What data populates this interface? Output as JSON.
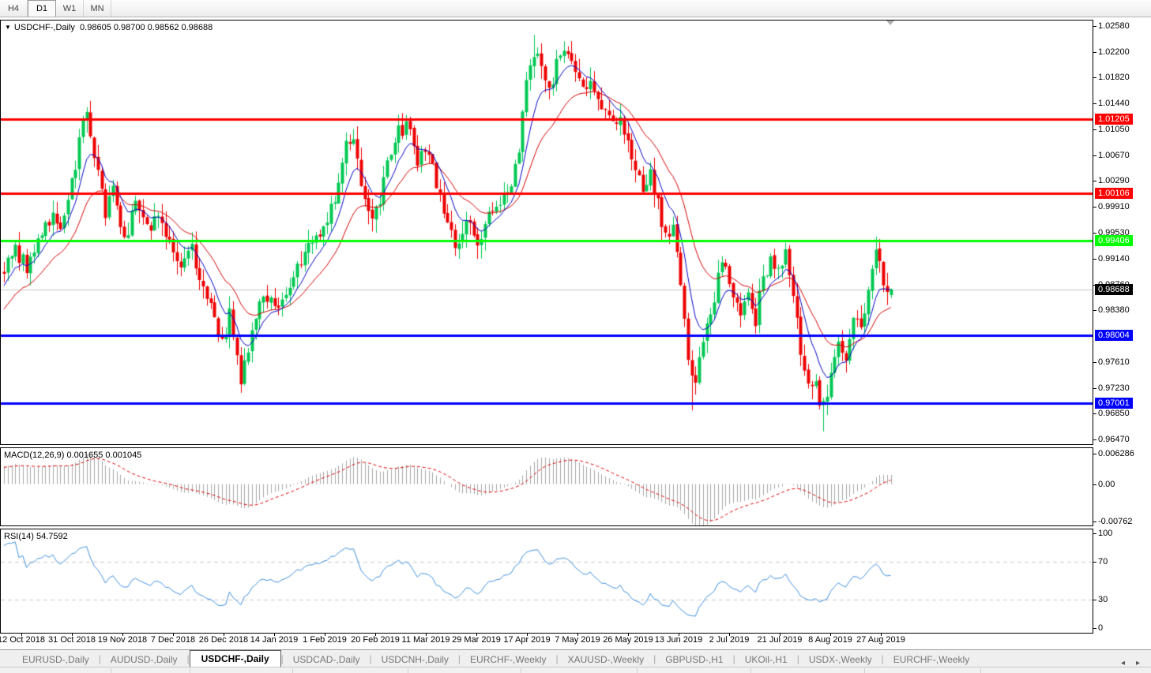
{
  "toolbar": {
    "timeframes": [
      {
        "label": "H4",
        "active": false
      },
      {
        "label": "D1",
        "active": true
      },
      {
        "label": "W1",
        "active": false
      },
      {
        "label": "MN",
        "active": false
      }
    ]
  },
  "chart": {
    "title_symbol": "USDCHF-,Daily",
    "title_ohlc": "0.98605 0.98700 0.98562 0.98688",
    "price_axis_labels": [
      "1.02580",
      "1.02200",
      "1.01820",
      "1.01440",
      "1.01050",
      "1.00670",
      "1.00290",
      "0.99910",
      "0.99530",
      "0.99140",
      "0.98760",
      "0.98380",
      "0.97610",
      "0.97230",
      "0.96850",
      "0.96470"
    ],
    "date_labels": [
      "12 Oct 2018",
      "31 Oct 2018",
      "19 Nov 2018",
      "7 Dec 2018",
      "26 Dec 2018",
      "14 Jan 2019",
      "1 Feb 2019",
      "20 Feb 2019",
      "11 Mar 2019",
      "29 Mar 2019",
      "17 Apr 2019",
      "7 May 2019",
      "26 May 2019",
      "13 Jun 2019",
      "2 Jul 2019",
      "21 Jul 2019",
      "8 Aug 2019",
      "27 Aug 2019"
    ],
    "colors": {
      "bull_candle": "#00c853",
      "bear_candle": "#ee0000",
      "ma_fast": "#0000c8",
      "ma_slow": "#d40000",
      "resistance_line": "#ff0000",
      "support_line": "#0000ff",
      "pivot_line": "#00ff00",
      "current_price_line": "#c8c8c8",
      "current_price_badge": "#000000",
      "macd_histogram": "#a8a8a8",
      "macd_signal": "#e00000",
      "rsi_line": "#3f8fdf"
    }
  },
  "macd_panel": {
    "label": "MACD(12,26,9)",
    "values": "0.001655 0.001045",
    "axis_labels": [
      {
        "text": "0.006286",
        "value": 0.006286
      },
      {
        "text": "0.00",
        "value": 0.0
      },
      {
        "text": "-0.00762",
        "value": -0.00762
      }
    ]
  },
  "rsi_panel": {
    "label": "RSI(14)",
    "value": "54.7592",
    "axis_labels": [
      {
        "text": "100",
        "value": 100
      },
      {
        "text": "70",
        "value": 70
      },
      {
        "text": "30",
        "value": 30
      },
      {
        "text": "0",
        "value": 0
      }
    ],
    "guide_levels": [
      70,
      30
    ]
  },
  "tabs": {
    "items": [
      "EURUSD-,Daily",
      "AUDUSD-,Daily",
      "USDCHF-,Daily",
      "USDCAD-,Daily",
      "USDCNH-,Daily",
      "EURCHF-,Weekly",
      "XAUUSD-,Weekly",
      "GBPUSD-,H1",
      "UKOil-,H1",
      "USDX-,Weekly",
      "EURCHF-,Weekly"
    ],
    "active_index": 2,
    "left_arrow": "◂",
    "right_arrow": "▸"
  },
  "chart_data": {
    "type": "candlestick",
    "symbol": "USDCHF",
    "timeframe": "Daily",
    "x_range": [
      "12 Oct 2018",
      "5 Sep 2019"
    ],
    "price_ylim": [
      0.9647,
      1.0258
    ],
    "last_candle": {
      "open": 0.98605,
      "high": 0.987,
      "low": 0.98562,
      "close": 0.98688
    },
    "levels": [
      {
        "price": 1.01205,
        "label": "1.01205",
        "color": "#ff0000",
        "kind": "resistance"
      },
      {
        "price": 1.00106,
        "label": "1.00106",
        "color": "#ff0000",
        "kind": "resistance"
      },
      {
        "price": 0.99406,
        "label": "0.99406",
        "color": "#00ff00",
        "kind": "pivot"
      },
      {
        "price": 0.98004,
        "label": "0.98004",
        "color": "#0000ff",
        "kind": "support"
      },
      {
        "price": 0.97001,
        "label": "0.97001",
        "color": "#0000ff",
        "kind": "support"
      }
    ],
    "current_price": {
      "value": 0.98688,
      "label": "0.98688"
    },
    "num_visible_candles": 237,
    "close_anchors": [
      [
        -30,
        0.97
      ],
      [
        -18,
        0.978
      ],
      [
        -8,
        0.9852
      ],
      [
        0,
        0.9895
      ],
      [
        3,
        0.993
      ],
      [
        6,
        0.9898
      ],
      [
        9,
        0.9942
      ],
      [
        13,
        0.9985
      ],
      [
        15,
        0.995
      ],
      [
        18,
        1.0025
      ],
      [
        21,
        1.011
      ],
      [
        22,
        1.0122
      ],
      [
        23,
        1.0092
      ],
      [
        25,
        1.004
      ],
      [
        27,
        0.9985
      ],
      [
        29,
        1.0018
      ],
      [
        32,
        0.9945
      ],
      [
        35,
        0.9992
      ],
      [
        38,
        0.9958
      ],
      [
        41,
        0.998
      ],
      [
        44,
        0.9938
      ],
      [
        47,
        0.9895
      ],
      [
        50,
        0.9928
      ],
      [
        53,
        0.9868
      ],
      [
        56,
        0.9825
      ],
      [
        58,
        0.9788
      ],
      [
        60,
        0.9832
      ],
      [
        62,
        0.9772
      ],
      [
        63,
        0.9728
      ],
      [
        66,
        0.9815
      ],
      [
        69,
        0.9858
      ],
      [
        72,
        0.984
      ],
      [
        76,
        0.9882
      ],
      [
        80,
        0.9925
      ],
      [
        84,
        0.9958
      ],
      [
        88,
        0.9998
      ],
      [
        91,
        1.0078
      ],
      [
        93,
        1.0092
      ],
      [
        95,
        1.0022
      ],
      [
        98,
        0.9962
      ],
      [
        101,
        1.0028
      ],
      [
        104,
        1.0092
      ],
      [
        107,
        1.0115
      ],
      [
        110,
        1.0062
      ],
      [
        112,
        1.008
      ],
      [
        115,
        1.0028
      ],
      [
        118,
        0.9975
      ],
      [
        120,
        0.9932
      ],
      [
        123,
        0.9968
      ],
      [
        126,
        0.9938
      ],
      [
        129,
        0.9988
      ],
      [
        132,
        0.9992
      ],
      [
        135,
        1.0018
      ],
      [
        137,
        1.008
      ],
      [
        139,
        1.0185
      ],
      [
        141,
        1.0222
      ],
      [
        143,
        1.0195
      ],
      [
        145,
        1.0165
      ],
      [
        147,
        1.0198
      ],
      [
        150,
        1.0218
      ],
      [
        152,
        1.0188
      ],
      [
        154,
        1.017
      ],
      [
        156,
        1.0178
      ],
      [
        158,
        1.0148
      ],
      [
        160,
        1.0128
      ],
      [
        162,
        1.0106
      ],
      [
        164,
        1.0126
      ],
      [
        166,
        1.0082
      ],
      [
        168,
        1.0052
      ],
      [
        170,
        1.0002
      ],
      [
        172,
        1.0038
      ],
      [
        174,
        1.0002
      ],
      [
        176,
        0.9942
      ],
      [
        178,
        0.9962
      ],
      [
        180,
        0.9868
      ],
      [
        182,
        0.9762
      ],
      [
        184,
        0.9728
      ],
      [
        186,
        0.9792
      ],
      [
        188,
        0.9822
      ],
      [
        190,
        0.9888
      ],
      [
        192,
        0.9908
      ],
      [
        194,
        0.9868
      ],
      [
        196,
        0.9828
      ],
      [
        198,
        0.9862
      ],
      [
        200,
        0.9822
      ],
      [
        202,
        0.9888
      ],
      [
        204,
        0.9912
      ],
      [
        206,
        0.9892
      ],
      [
        208,
        0.9922
      ],
      [
        210,
        0.9852
      ],
      [
        212,
        0.9782
      ],
      [
        214,
        0.9728
      ],
      [
        216,
        0.9722
      ],
      [
        218,
        0.9692
      ],
      [
        220,
        0.9742
      ],
      [
        222,
        0.9792
      ],
      [
        224,
        0.9772
      ],
      [
        226,
        0.9838
      ],
      [
        228,
        0.9812
      ],
      [
        230,
        0.9878
      ],
      [
        232,
        0.9922
      ],
      [
        233,
        0.9902
      ],
      [
        234,
        0.9878
      ],
      [
        235,
        0.9862
      ],
      [
        236,
        0.98688
      ]
    ],
    "wick_overrides": {
      "22": {
        "high": 1.0131
      },
      "63": {
        "low": 0.9716
      },
      "107": {
        "high": 1.0122
      },
      "141": {
        "high": 1.0245
      },
      "150": {
        "high": 1.0228
      },
      "183": {
        "low": 0.969
      },
      "218": {
        "low": 0.9659
      }
    },
    "ma_fast_period": 8,
    "ma_slow_period": 20,
    "macd": {
      "fast": 12,
      "slow": 26,
      "signal": 9,
      "last_main": 0.001655,
      "last_signal": 0.001045,
      "ylim": [
        -0.00762,
        0.006286
      ]
    },
    "rsi": {
      "period": 14,
      "last_value": 54.7592,
      "ylim": [
        0,
        100
      ]
    }
  }
}
